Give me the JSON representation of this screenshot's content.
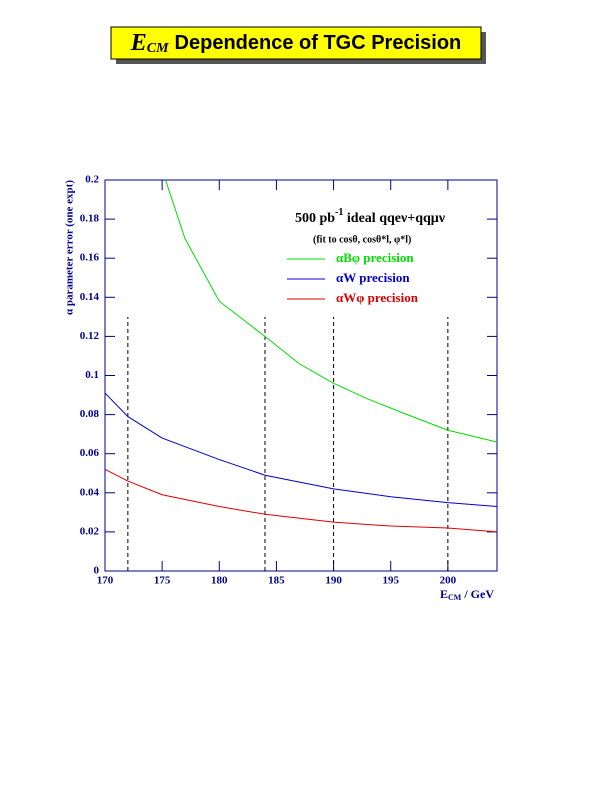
{
  "chart_data": {
    "type": "line",
    "title_symbol": "E",
    "title_subscript": "CM",
    "title": "Dependence of TGC Precision",
    "annotation": {
      "text": "500 pb",
      "sup": "-1",
      "rest": " ideal qqeν+qqμν",
      "note": "(fit to cosθ, cosθ*l, φ*l)"
    },
    "xlabel_symbol": "E",
    "xlabel_subscript": "CM",
    "xlabel_unit": " / GeV",
    "ylabel": "α parameter error (one expt)",
    "xlim": [
      170,
      204.3
    ],
    "ylim": [
      0,
      0.2
    ],
    "xticks": [
      170,
      175,
      180,
      185,
      190,
      195,
      200
    ],
    "yticks": [
      0,
      0.02,
      0.04,
      0.06,
      0.08,
      0.1,
      0.12,
      0.14,
      0.16,
      0.18,
      0.2
    ],
    "markers": {
      "x": [
        172,
        184,
        190,
        200
      ],
      "height": 0.13
    },
    "series": [
      {
        "name": "αBφ precision",
        "color": "#00dd00",
        "x": [
          175.3,
          177,
          180,
          184,
          187,
          190,
          193,
          196,
          200,
          204.3
        ],
        "values": [
          0.2,
          0.17,
          0.138,
          0.12,
          0.106,
          0.096,
          0.088,
          0.081,
          0.072,
          0.066
        ]
      },
      {
        "name": "αW precision",
        "color": "#0000cc",
        "x": [
          170,
          172,
          175,
          180,
          184,
          190,
          195,
          200,
          204.3
        ],
        "values": [
          0.091,
          0.079,
          0.068,
          0.057,
          0.049,
          0.042,
          0.038,
          0.035,
          0.033
        ]
      },
      {
        "name": "αWφ precision",
        "color": "#dd0000",
        "x": [
          170,
          172,
          175,
          180,
          184,
          190,
          195,
          200,
          204.3
        ],
        "values": [
          0.052,
          0.046,
          0.039,
          0.033,
          0.029,
          0.025,
          0.023,
          0.022,
          0.02
        ]
      }
    ]
  }
}
